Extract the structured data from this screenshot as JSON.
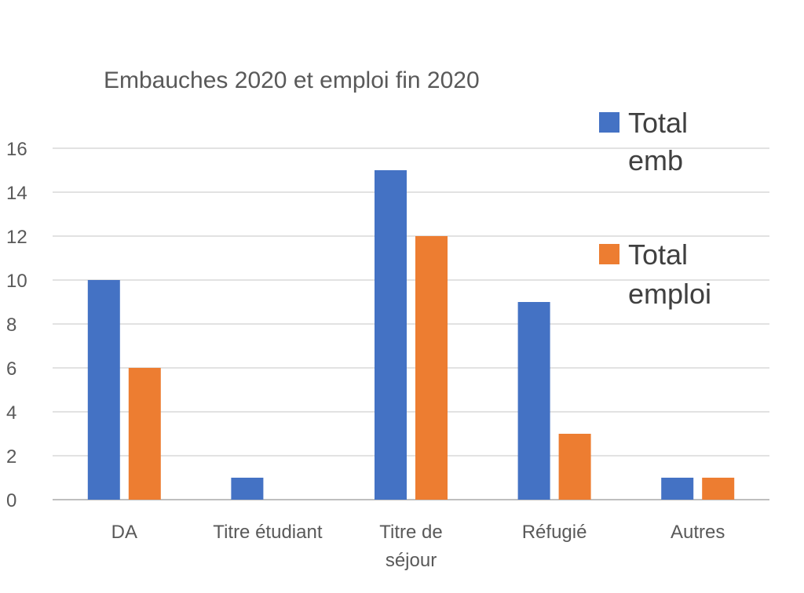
{
  "chart_data": {
    "type": "bar",
    "title": "Embauches 2020 et emploi fin 2020",
    "xlabel": "",
    "ylabel": "",
    "categories": [
      "DA",
      "Titre étudiant",
      "Titre de séjour",
      "Réfugié",
      "Autres"
    ],
    "series": [
      {
        "name": "Total emb",
        "values": [
          10,
          1,
          15,
          9,
          1
        ],
        "color": "#4472C4"
      },
      {
        "name": "Total emploi",
        "values": [
          6,
          0,
          12,
          3,
          1
        ],
        "color": "#ED7D31"
      }
    ],
    "ylim": [
      0,
      16
    ],
    "yticks": [
      0,
      2,
      4,
      6,
      8,
      10,
      12,
      14,
      16
    ],
    "grid": true,
    "legend_position": "right"
  }
}
